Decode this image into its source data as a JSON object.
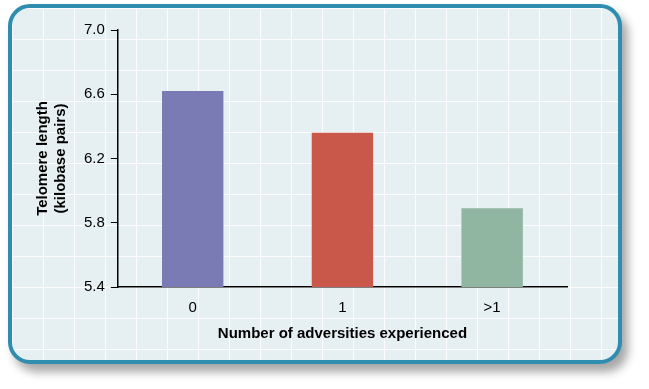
{
  "chart_data": {
    "type": "bar",
    "x_label": "Number of adversities experienced",
    "y_label": [
      "Telomere length",
      "(kilobase pairs)"
    ],
    "categories": [
      "0",
      "1",
      ">1"
    ],
    "values": [
      6.62,
      6.36,
      5.89
    ],
    "colors": [
      "#7a7bb4",
      "#c9574a",
      "#90b5a0"
    ],
    "ylim": [
      5.4,
      7.0
    ],
    "yticks": [
      5.4,
      5.8,
      6.2,
      6.6,
      {
        "value": 7.0,
        "label": "7.0"
      }
    ],
    "grid": false
  }
}
